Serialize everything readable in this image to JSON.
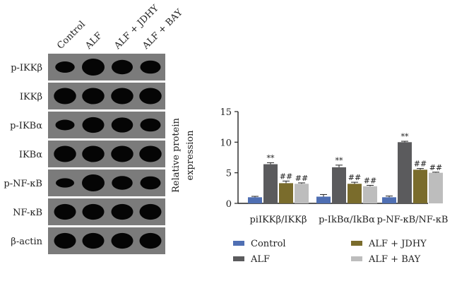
{
  "blot_panel": {
    "lane_labels": [
      "Control",
      "ALF",
      "ALF + JDHY",
      "ALF + BAY"
    ],
    "rows": [
      {
        "label": "p-IKKβ",
        "intensity": [
          0.55,
          1.0,
          0.8,
          0.7
        ]
      },
      {
        "label": "IKKβ",
        "intensity": [
          0.95,
          0.95,
          0.95,
          0.95
        ]
      },
      {
        "label": "p-IKBα",
        "intensity": [
          0.5,
          0.9,
          0.85,
          0.7
        ]
      },
      {
        "label": "IKBα",
        "intensity": [
          0.95,
          0.95,
          0.95,
          0.95
        ]
      },
      {
        "label": "p-NF-κB",
        "intensity": [
          0.4,
          1.0,
          0.75,
          0.7
        ]
      },
      {
        "label": "NF-κB",
        "intensity": [
          0.9,
          0.9,
          0.9,
          0.9
        ]
      },
      {
        "label": "β-actin",
        "intensity": [
          0.9,
          0.9,
          0.9,
          0.9
        ]
      }
    ],
    "colors": {
      "background": "#7b7b7b",
      "band": "#050505"
    }
  },
  "chart_data": {
    "type": "bar",
    "categories": [
      "piIKKβ/IKKβ",
      "p-IkBα/IkBα",
      "p-NF-κB/NF-κB"
    ],
    "ylabel": "Relative protein expression",
    "ylim": [
      0,
      15
    ],
    "yticks": [
      0,
      5,
      10,
      15
    ],
    "grid": false,
    "legend_placement": "bottom",
    "series": [
      {
        "name": "Control",
        "color": "#4f6fb3",
        "values": [
          1.0,
          1.1,
          1.0
        ],
        "errors": [
          0.15,
          0.35,
          0.2
        ],
        "annotations": [
          "",
          "",
          ""
        ]
      },
      {
        "name": "ALF",
        "color": "#5b5b5d",
        "values": [
          6.4,
          5.9,
          10.0
        ],
        "errors": [
          0.25,
          0.35,
          0.15
        ],
        "annotations": [
          "**",
          "**",
          "**"
        ]
      },
      {
        "name": "ALF + JDHY",
        "color": "#7a6c2c",
        "values": [
          3.3,
          3.2,
          5.5
        ],
        "errors": [
          0.35,
          0.25,
          0.2
        ],
        "annotations": [
          "##",
          "##",
          "##"
        ]
      },
      {
        "name": "ALF + BAY",
        "color": "#bdbdbd",
        "values": [
          3.2,
          2.8,
          5.0
        ],
        "errors": [
          0.15,
          0.15,
          0.1
        ],
        "annotations": [
          "##",
          "##",
          "##"
        ]
      }
    ],
    "legend_labels": {
      "yaxis_line1": "Relative protein",
      "yaxis_line2": "expression"
    }
  }
}
